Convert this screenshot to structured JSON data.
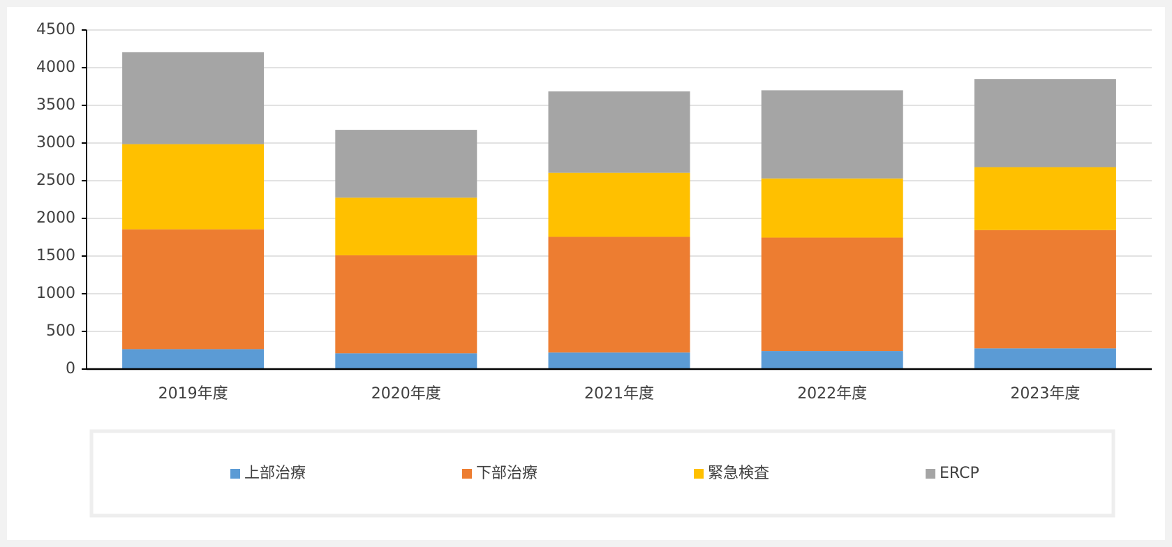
{
  "chart_data": {
    "type": "stacked-bar",
    "categories": [
      "2019年度",
      "2020年度",
      "2021年度",
      "2022年度",
      "2023年度"
    ],
    "series": [
      {
        "name": "上部治療",
        "color": "#5b9bd5",
        "values": [
          265,
          210,
          220,
          240,
          275
        ]
      },
      {
        "name": "下部治療",
        "color": "#ed7d31",
        "values": [
          1590,
          1300,
          1535,
          1505,
          1570
        ]
      },
      {
        "name": "緊急検査",
        "color": "#ffc000",
        "values": [
          1130,
          765,
          850,
          785,
          835
        ]
      },
      {
        "name": "ERCP",
        "color": "#a5a5a5",
        "values": [
          1220,
          900,
          1080,
          1170,
          1170
        ]
      }
    ],
    "ylim": [
      0,
      4500
    ],
    "yticks": [
      0,
      500,
      1000,
      1500,
      2000,
      2500,
      3000,
      3500,
      4000,
      4500
    ],
    "grid": true,
    "legend": "bottom"
  }
}
